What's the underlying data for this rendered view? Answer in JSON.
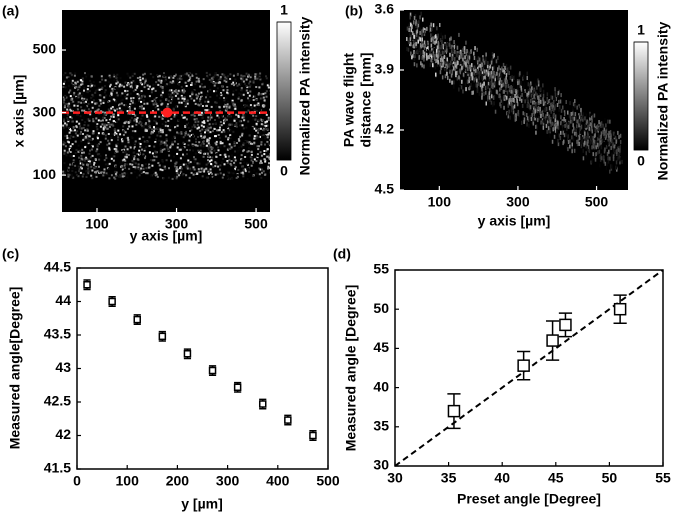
{
  "chart_data": [
    {
      "type": "image",
      "panel": "(a)",
      "xlabel": "y axis [µm]",
      "ylabel": "x axis [µm]",
      "xlim": [
        12,
        535
      ],
      "ylim": [
        -18,
        628
      ],
      "xticks": [
        100,
        300,
        500
      ],
      "yticks": [
        100,
        300,
        500
      ],
      "band": [
        90,
        430
      ],
      "profile_line": 300,
      "profile_color": "#ff2020",
      "marker_point": [
        277,
        300
      ],
      "colorbar_label": "Normalized PA intensity",
      "clim": [
        0,
        1
      ],
      "cbar_ticks": [
        0,
        1
      ]
    },
    {
      "type": "image",
      "panel": "(b)",
      "xlabel": "y axis [µm]",
      "ylabel": [
        "PA wave flight",
        "distance [mm]"
      ],
      "xlim": [
        0,
        580
      ],
      "ylim": [
        4.5,
        3.6
      ],
      "xticks": [
        100,
        300,
        500
      ],
      "yticks": [
        3.6,
        3.9,
        4.2,
        4.5
      ],
      "streak": [
        [
          20,
          3.72
        ],
        [
          560,
          4.3
        ]
      ],
      "colorbar_label": "Normalized PA intensity",
      "clim": [
        0,
        1
      ],
      "cbar_ticks": [
        0,
        1
      ]
    },
    {
      "type": "errorbar",
      "panel": "(c)",
      "xlabel": "y [µm]",
      "ylabel": "Measured angle[Degree]",
      "xlim": [
        0,
        500
      ],
      "ylim": [
        41.5,
        44.5
      ],
      "xticks": [
        0,
        100,
        200,
        300,
        400,
        500
      ],
      "yticks": [
        41.5,
        42,
        42.5,
        43,
        43.5,
        44,
        44.5
      ],
      "x": [
        20,
        70,
        120,
        170,
        220,
        270,
        320,
        370,
        420,
        470
      ],
      "values": [
        44.25,
        44.0,
        43.73,
        43.48,
        43.22,
        42.97,
        42.72,
        42.47,
        42.23,
        42.0
      ],
      "errors": [
        0.07,
        0.07,
        0.07,
        0.07,
        0.07,
        0.07,
        0.07,
        0.07,
        0.07,
        0.07
      ],
      "color": "#000000"
    },
    {
      "type": "errorbar",
      "panel": "(d)",
      "xlabel": "Preset angle [Degree]",
      "ylabel": "Measured angle [Degree]",
      "xlim": [
        30,
        55
      ],
      "ylim": [
        30,
        55
      ],
      "xticks": [
        30,
        35,
        40,
        45,
        50,
        55
      ],
      "yticks": [
        30,
        35,
        40,
        45,
        50,
        55
      ],
      "x": [
        35.5,
        42,
        44.7,
        45.9,
        51
      ],
      "values": [
        37,
        42.8,
        46,
        48,
        50
      ],
      "errors": [
        2.2,
        1.8,
        2.5,
        1.5,
        1.8
      ],
      "color": "#000000",
      "identity_line": true
    }
  ]
}
